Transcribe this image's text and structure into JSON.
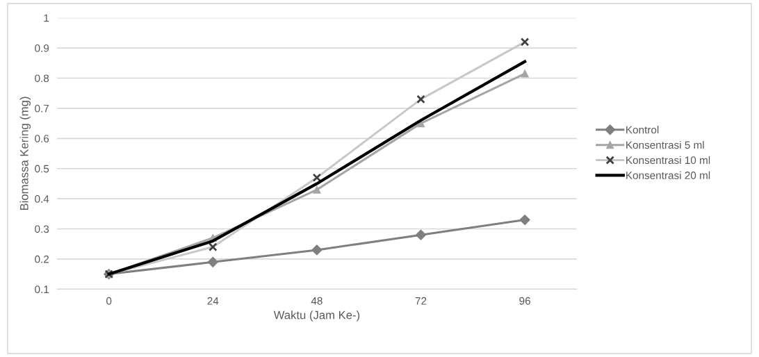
{
  "chart_data": {
    "type": "line",
    "xlabel": "Waktu (Jam Ke-)",
    "ylabel": "Biomassa Kering (mg)",
    "categories": [
      "0",
      "24",
      "48",
      "72",
      "96"
    ],
    "series": [
      {
        "name": "Kontrol",
        "color": "#7f7f7f",
        "marker": "diamond",
        "values": [
          0.15,
          0.19,
          0.23,
          0.28,
          0.33
        ]
      },
      {
        "name": "Konsentrasi 5 ml",
        "color": "#a5a5a5",
        "marker": "triangle",
        "values": [
          0.15,
          0.27,
          0.43,
          0.65,
          0.815
        ]
      },
      {
        "name": "Konsentrasi 10 ml",
        "color": "#c8c8c8",
        "marker": "cross",
        "values": [
          0.15,
          0.24,
          0.47,
          0.73,
          0.92
        ]
      },
      {
        "name": "Konsentrasi 20 ml",
        "color": "#000000",
        "marker": "none",
        "values": [
          0.15,
          0.26,
          0.45,
          0.66,
          0.855
        ]
      }
    ],
    "ylim": [
      0.1,
      1
    ],
    "yticks": [
      0.1,
      0.2,
      0.3,
      0.4,
      0.5,
      0.6,
      0.7,
      0.8,
      0.9,
      1
    ],
    "grid": "y",
    "legend": "right"
  }
}
